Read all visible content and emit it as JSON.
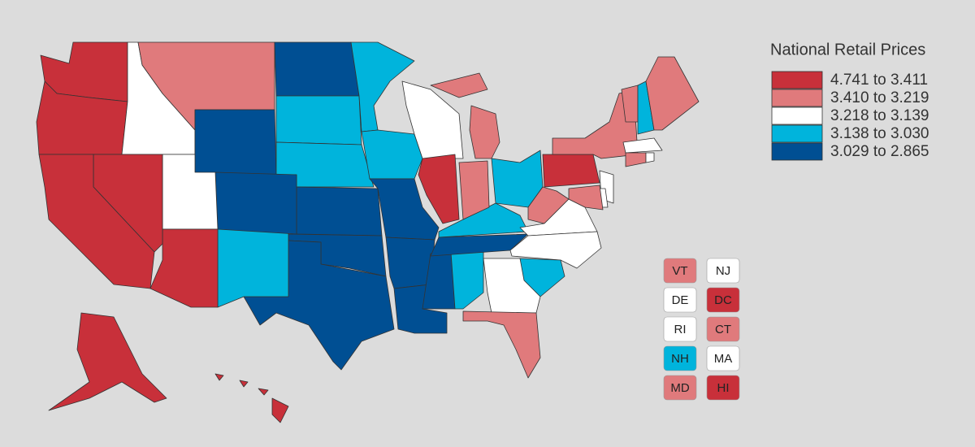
{
  "legend": {
    "title": "National Retail Prices",
    "items": [
      {
        "label": "4.741 to 3.411",
        "color": "#c8303a"
      },
      {
        "label": "3.410 to 3.219",
        "color": "#e07a7c"
      },
      {
        "label": "3.218 to 3.139",
        "color": "#ffffff"
      },
      {
        "label": "3.138 to 3.030",
        "color": "#00b4dc"
      },
      {
        "label": "3.029 to 2.865",
        "color": "#004f93"
      }
    ]
  },
  "state_boxes": [
    {
      "label": "VT"
    },
    {
      "label": "NJ"
    },
    {
      "label": "DE"
    },
    {
      "label": "DC"
    },
    {
      "label": "RI"
    },
    {
      "label": "CT"
    },
    {
      "label": "NH"
    },
    {
      "label": "MA"
    },
    {
      "label": "MD"
    },
    {
      "label": "HI"
    }
  ]
}
